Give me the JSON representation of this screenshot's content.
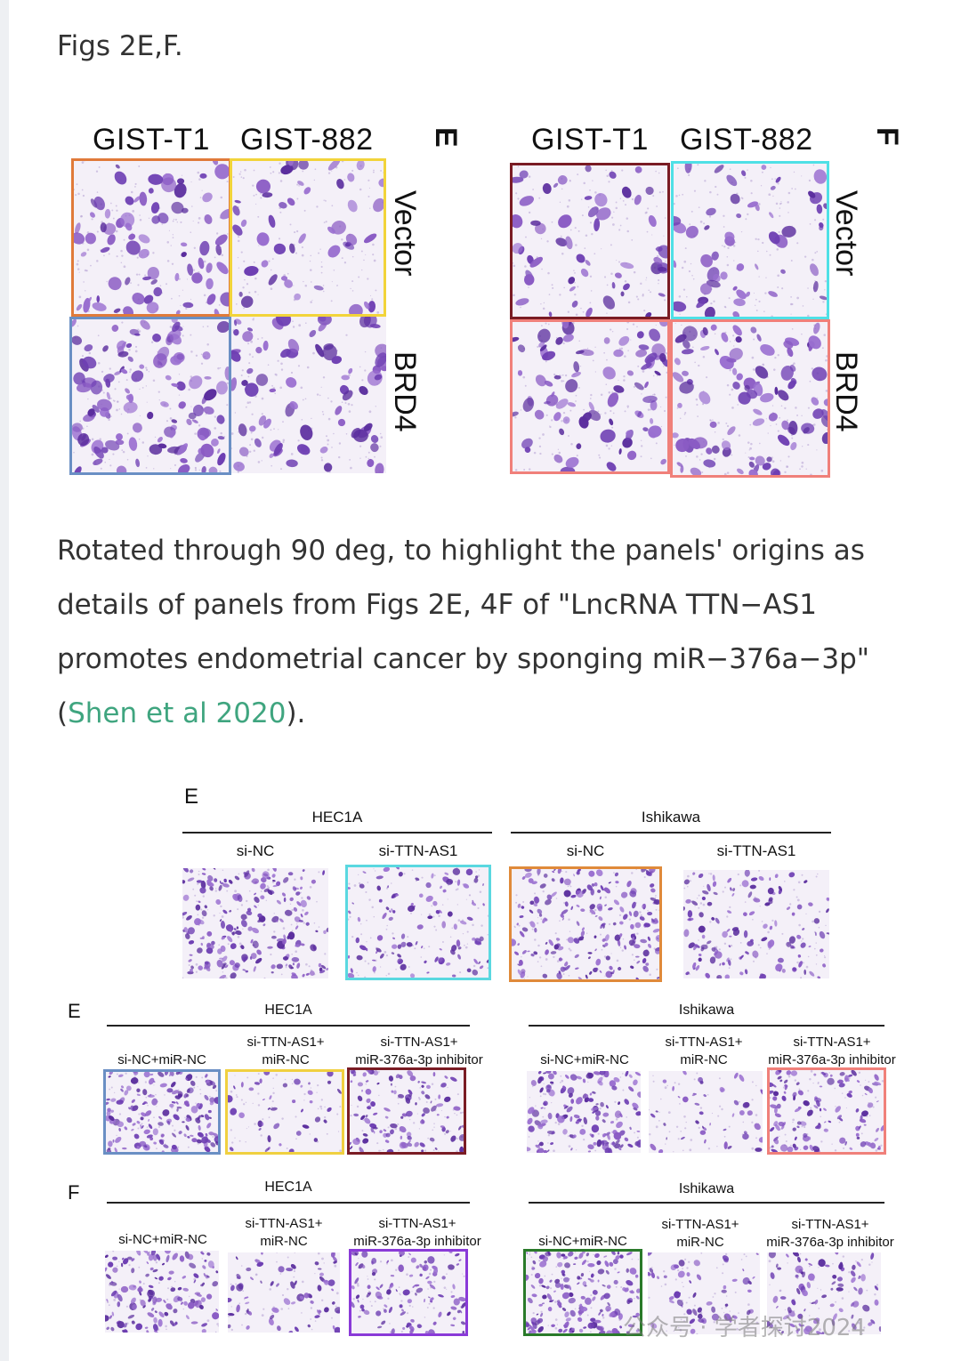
{
  "caption_top": "Figs 2E,F.",
  "figure1": {
    "E": {
      "letter": "E",
      "cols": [
        "GIST-T1",
        "GIST-882"
      ],
      "rows": [
        "Vector",
        "BRD4"
      ],
      "frames": [
        "#e07a3a",
        "#f2d43a",
        "#6a8fc4",
        "none"
      ]
    },
    "F": {
      "letter": "F",
      "cols": [
        "GIST-T1",
        "GIST-882"
      ],
      "rows": [
        "Vector",
        "BRD4"
      ],
      "frames": [
        "#7a1c24",
        "#4fe0e6",
        "#f0807a",
        "#f0807a"
      ]
    }
  },
  "description": {
    "text": "Rotated through 90 deg, to highlight the panels' origins as details of panels from Figs 2E, 4F of \"LncRNA TTN−AS1 promotes endometrial cancer by sponging miR−376a−3p\" (",
    "link": "Shen et al 2020",
    "suffix": ")."
  },
  "figure2": {
    "top": {
      "letter": "E",
      "groups": [
        "HEC1A",
        "Ishikawa"
      ],
      "cols": [
        "si-NC",
        "si-TTN-AS1",
        "si-NC",
        "si-TTN-AS1"
      ],
      "frames": [
        "none",
        "#5ad8e0",
        "#e08a3a",
        "none"
      ]
    },
    "mid": {
      "letter": "E",
      "groups": [
        "HEC1A",
        "Ishikawa"
      ],
      "cols": [
        "si-NC+miR-NC",
        "si-TTN-AS1+\nmiR-NC",
        "si-TTN-AS1+\nmiR-376a-3p inhibitor",
        "si-NC+miR-NC",
        "si-TTN-AS1+\nmiR-NC",
        "si-TTN-AS1+\nmiR-376a-3p inhibitor"
      ],
      "frames": [
        "#6a8fc4",
        "#f0d040",
        "#7a1c24",
        "none",
        "none",
        "#f0807a"
      ]
    },
    "bot": {
      "letter": "F",
      "groups": [
        "HEC1A",
        "Ishikawa"
      ],
      "cols": [
        "si-NC+miR-NC",
        "si-TTN-AS1+\nmiR-NC",
        "si-TTN-AS1+\nmiR-376a-3p inhibitor",
        "si-NC+miR-NC",
        "si-TTN-AS1+\nmiR-NC",
        "si-TTN-AS1+\nmiR-376a-3p inhibitor"
      ],
      "frames": [
        "none",
        "none",
        "#8a3ad8",
        "#2a7a2a",
        "none",
        "none"
      ]
    }
  },
  "watermark": "公众号 · 学者探讨2024",
  "colors": {
    "cell_dark": "#5b2e9e",
    "cell_mid": "#8a5bc4",
    "cell_bg": "#f4f0f8",
    "link": "#3fa57f"
  }
}
